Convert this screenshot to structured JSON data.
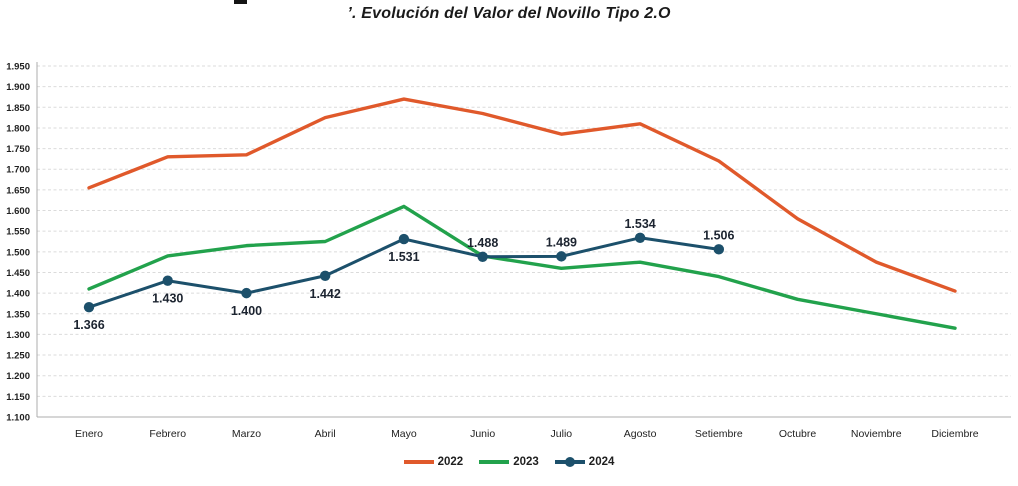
{
  "chart_data": {
    "type": "line",
    "title": "’. Evolución del Valor del Novillo Tipo 2.O",
    "categories": [
      "Enero",
      "Febrero",
      "Marzo",
      "Abril",
      "Mayo",
      "Junio",
      "Julio",
      "Agosto",
      "Setiembre",
      "Octubre",
      "Noviembre",
      "Diciembre"
    ],
    "series": [
      {
        "name": "2022",
        "color": "#E0592B",
        "marker": false,
        "values": [
          1.655,
          1.73,
          1.735,
          1.825,
          1.87,
          1.835,
          1.785,
          1.81,
          1.72,
          1.58,
          1.475,
          1.405
        ]
      },
      {
        "name": "2023",
        "color": "#22A24C",
        "marker": false,
        "values": [
          1.41,
          1.49,
          1.515,
          1.525,
          1.61,
          1.49,
          1.46,
          1.475,
          1.44,
          1.385,
          1.35,
          1.315
        ]
      },
      {
        "name": "2024",
        "color": "#1C506B",
        "marker": true,
        "values": [
          1.366,
          1.43,
          1.4,
          1.442,
          1.531,
          1.488,
          1.489,
          1.534,
          1.506,
          null,
          null,
          null
        ],
        "data_labels": [
          "1.366",
          "1.430",
          "1.400",
          "1.442",
          "1.531",
          "1.488",
          "1.489",
          "1.534",
          "1.506"
        ],
        "label_position": [
          "below",
          "below",
          "below",
          "below",
          "below",
          "above",
          "above",
          "above",
          "above"
        ]
      }
    ],
    "ylim": [
      1.1,
      1.95
    ],
    "ytick_step": 0.05,
    "yticks": [
      "1.950",
      "1.900",
      "1.850",
      "1.800",
      "1.750",
      "1.700",
      "1.650",
      "1.600",
      "1.550",
      "1.500",
      "1.450",
      "1.400",
      "1.350",
      "1.300",
      "1.250",
      "1.200",
      "1.150",
      "1.100"
    ],
    "grid": "dashed-horizontal",
    "legend_position": "bottom-center",
    "axis_color": "#ACACAC",
    "gridline_color": "#DBDBDB",
    "tick_label_color": "#222222",
    "data_label_color": "#1C2430"
  }
}
